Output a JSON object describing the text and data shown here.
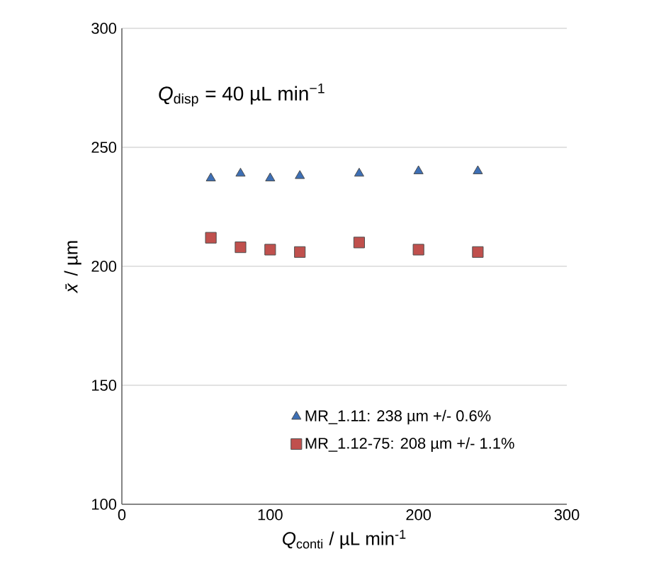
{
  "chart_data": {
    "type": "scatter",
    "xlabel": "*Q*$_{conti}$ / µL min$^{-1}$",
    "ylabel": "*x̄* / µm",
    "annotations": [
      "*Q*$_{disp}$ = 40 µL min$^{−1}$"
    ],
    "xlim": [
      0,
      300
    ],
    "xticks": [
      0,
      100,
      200,
      300
    ],
    "ylim": [
      100,
      300
    ],
    "yticks": [
      100,
      150,
      200,
      250,
      300
    ],
    "grid": "y",
    "legend": "bottom right",
    "series": [
      {
        "name": "MR_1.11: 238 µm +/- 0.6%",
        "color": "#3d6fb5",
        "marker": "triangle",
        "x": [
          60,
          80,
          100,
          120,
          160,
          200,
          240
        ],
        "values": [
          237,
          239,
          237,
          238,
          239,
          240,
          240
        ]
      },
      {
        "name": "MR_1.12-75: 208 µm +/- 1.1%",
        "color": "#c0504d",
        "marker": "square",
        "x": [
          60,
          80,
          100,
          120,
          160,
          200,
          240
        ],
        "values": [
          212,
          208,
          207,
          206,
          210,
          207,
          206
        ]
      }
    ]
  }
}
